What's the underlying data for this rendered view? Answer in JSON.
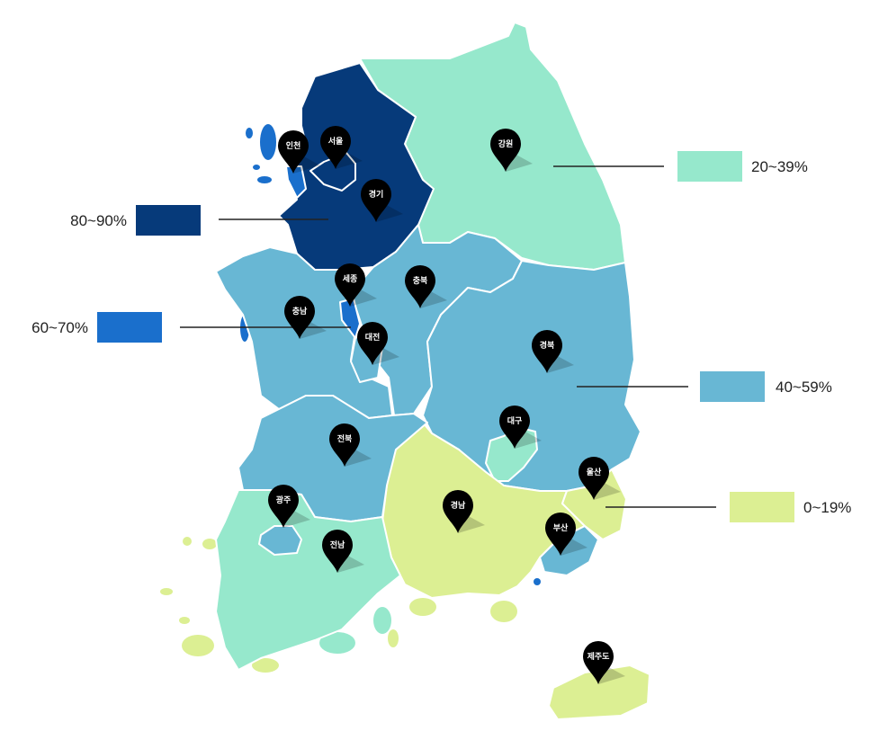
{
  "legend": [
    {
      "label": "80~90%",
      "color": "#063a7a"
    },
    {
      "label": "60~70%",
      "color": "#1a6fcc"
    },
    {
      "label": "40~59%",
      "color": "#68b7d4"
    },
    {
      "label": "20~39%",
      "color": "#96e8cc"
    },
    {
      "label": "0~19%",
      "color": "#dcef93"
    }
  ],
  "regions": [
    {
      "id": "gyeonggi",
      "label": "경기",
      "range": "80~90%"
    },
    {
      "id": "seoul",
      "label": "서울",
      "range": "80~90%"
    },
    {
      "id": "incheon",
      "label": "인천",
      "range": "60~70%"
    },
    {
      "id": "gangwon",
      "label": "강원",
      "range": "20~39%"
    },
    {
      "id": "sejong",
      "label": "세종",
      "range": "60~70%"
    },
    {
      "id": "chungbuk",
      "label": "충북",
      "range": "40~59%"
    },
    {
      "id": "chungnam",
      "label": "충남",
      "range": "40~59%"
    },
    {
      "id": "daejeon",
      "label": "대전",
      "range": "40~59%"
    },
    {
      "id": "gyeongbuk",
      "label": "경북",
      "range": "40~59%"
    },
    {
      "id": "daegu",
      "label": "대구",
      "range": "20~39%"
    },
    {
      "id": "jeonbuk",
      "label": "전북",
      "range": "40~59%"
    },
    {
      "id": "ulsan",
      "label": "울산",
      "range": "0~19%"
    },
    {
      "id": "gwangju",
      "label": "광주",
      "range": "40~59%"
    },
    {
      "id": "gyeongnam",
      "label": "경남",
      "range": "0~19%"
    },
    {
      "id": "busan",
      "label": "부산",
      "range": "40~59%"
    },
    {
      "id": "jeonnam",
      "label": "전남",
      "range": "20~39%"
    },
    {
      "id": "jeju",
      "label": "제주도",
      "range": "0~19%"
    }
  ]
}
